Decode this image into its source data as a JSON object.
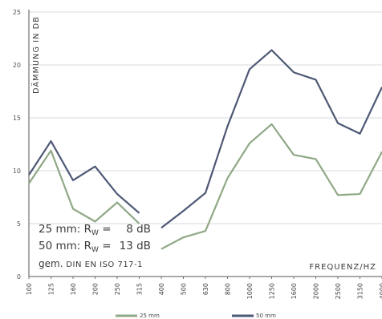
{
  "chart_data": {
    "type": "line",
    "title": "",
    "xlabel": "FREQUENZ/HZ",
    "ylabel": "DÄMMUNG IN DB",
    "x": [
      "100",
      "125",
      "160",
      "200",
      "250",
      "315",
      "400",
      "500",
      "630",
      "800",
      "1000",
      "1250",
      "1600",
      "2000",
      "2500",
      "3150",
      "4000"
    ],
    "ylim": [
      0,
      25
    ],
    "yticks": [
      "0",
      "5",
      "10",
      "15",
      "20",
      "25"
    ],
    "grid": "horizontal",
    "legend": "bottom",
    "series": [
      {
        "name": "25 mm",
        "color": "#8fa886",
        "values": [
          8.8,
          11.9,
          6.4,
          5.2,
          7.0,
          5.0,
          2.6,
          3.7,
          4.3,
          9.3,
          12.6,
          14.4,
          11.5,
          11.1,
          7.7,
          7.8,
          11.8
        ],
        "gap_after_index": 5
      },
      {
        "name": "50 mm",
        "color": "#4e5875",
        "values": [
          9.6,
          12.8,
          9.1,
          10.4,
          7.8,
          6.0,
          4.6,
          6.2,
          7.9,
          14.2,
          19.6,
          21.4,
          19.3,
          18.6,
          14.5,
          13.5,
          17.9
        ],
        "gap_after_index": 5
      }
    ]
  },
  "info_box": {
    "line1_prefix": "25 mm: R",
    "line1_sub": "W",
    "line1_eq": " = ",
    "line1_value": "8",
    "line1_unit": " dB",
    "line2_prefix": "50 mm: R",
    "line2_sub": "W",
    "line2_eq": " = ",
    "line2_value": "13",
    "line2_unit": " dB",
    "line3_prefix": "gem. ",
    "line3_norm": "DIN EN ISO 717-1"
  }
}
